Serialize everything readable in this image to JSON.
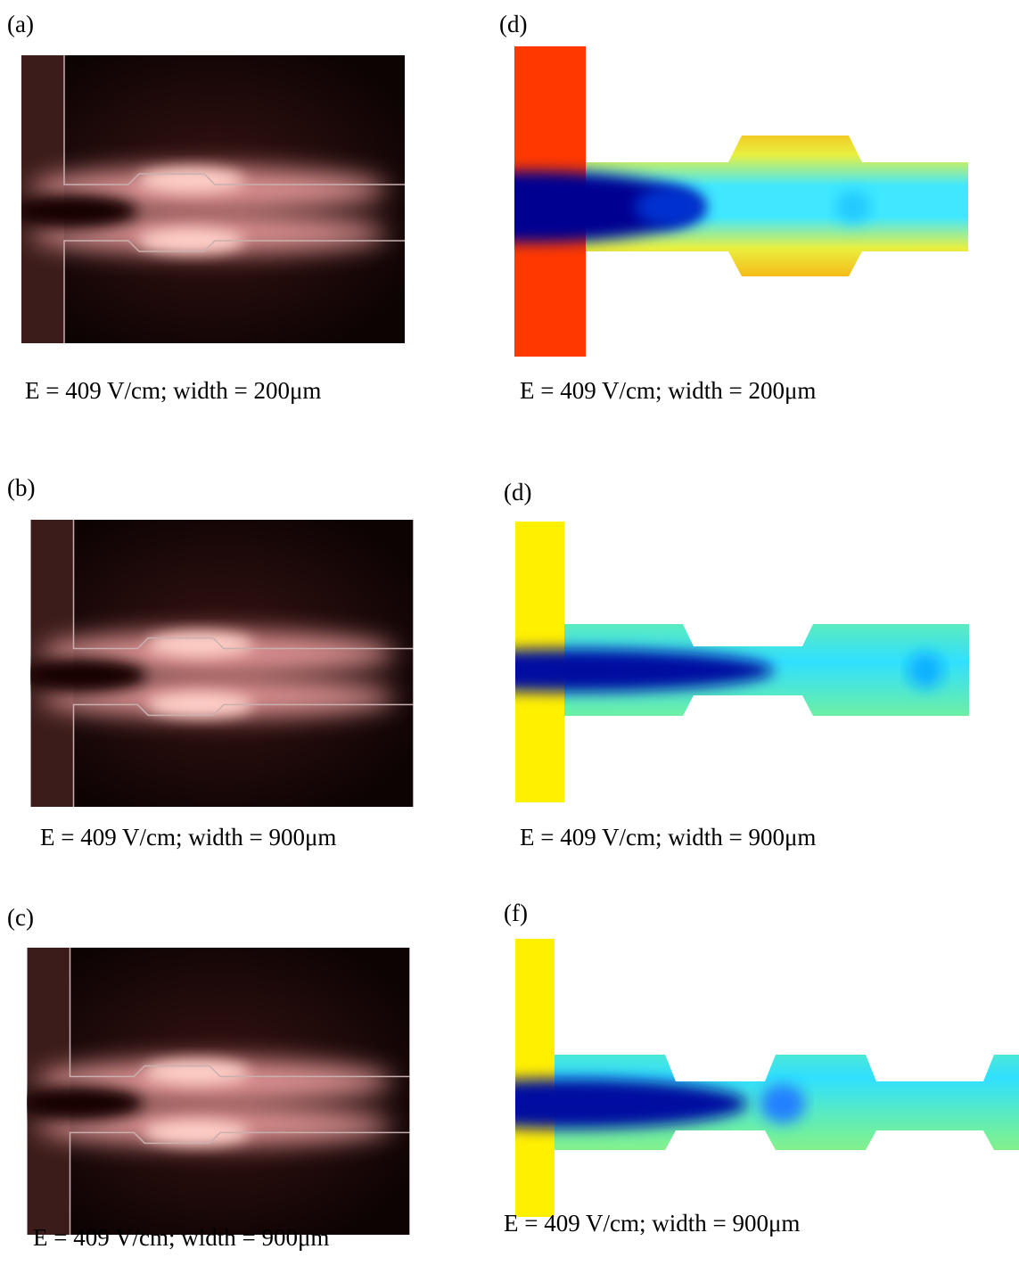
{
  "panels": [
    {
      "label": "(a)",
      "caption": "E = 409 V/cm; width = 200μm"
    },
    {
      "label": "(d)",
      "caption": "E = 409 V/cm; width = 200μm"
    },
    {
      "label": "(b)",
      "caption": "E = 409 V/cm; width = 900μm"
    },
    {
      "label": "(d)",
      "caption": "E = 409 V/cm; width = 900μm"
    },
    {
      "label": "(c)",
      "caption": "E = 409 V/cm; width = 900μm"
    },
    {
      "label": "(f)",
      "caption": "E = 409 V/cm; width = 900μm"
    }
  ]
}
